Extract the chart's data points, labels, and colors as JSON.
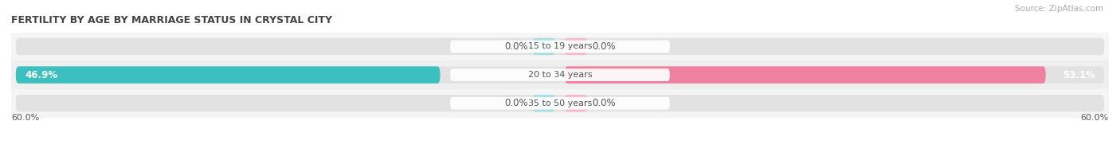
{
  "title": "FERTILITY BY AGE BY MARRIAGE STATUS IN CRYSTAL CITY",
  "source": "Source: ZipAtlas.com",
  "categories": [
    "15 to 19 years",
    "20 to 34 years",
    "35 to 50 years"
  ],
  "married_values": [
    0.0,
    46.9,
    0.0
  ],
  "unmarried_values": [
    0.0,
    53.1,
    0.0
  ],
  "max_value": 60.0,
  "married_color": "#3bbfbf",
  "unmarried_color": "#f080a0",
  "married_light": "#a8dede",
  "unmarried_light": "#f5b8cc",
  "row_bg": "#f0f0f0",
  "row_bg_alt": "#e4e4e4",
  "pill_bg": "#e8e8e8",
  "label_color": "#555555",
  "title_color": "#444444",
  "white": "#ffffff",
  "title_fontsize": 9.0,
  "source_fontsize": 7.5,
  "axis_label_fontsize": 8.0,
  "bar_label_fontsize": 8.5,
  "category_fontsize": 8.0,
  "legend_fontsize": 8.5,
  "xlim_min": -60.0,
  "xlim_max": 60.0,
  "left_label": "60.0%",
  "right_label": "60.0%",
  "stub_size": 2.5
}
